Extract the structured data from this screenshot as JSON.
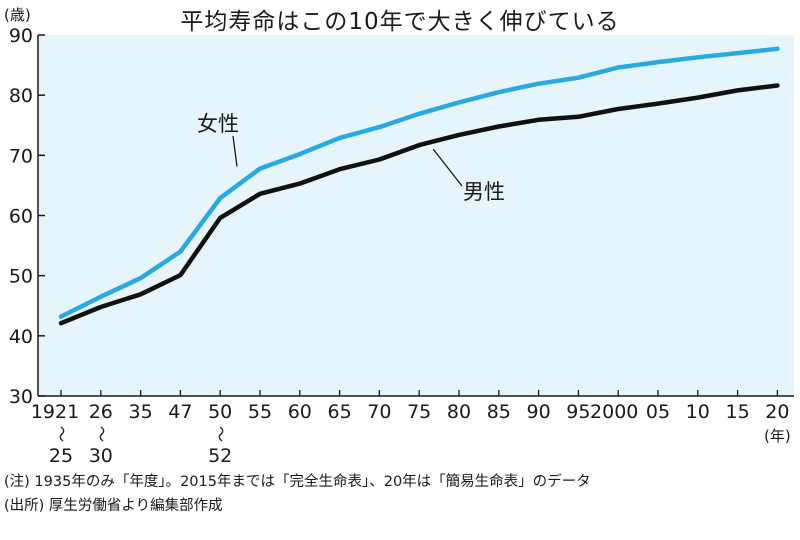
{
  "title": "平均寿命はこの10年で大きく伸びている",
  "y_unit": "(歳)",
  "x_unit": "(年)",
  "notes": [
    "(注) 1935年のみ「年度」。2015年までは「完全生命表」、20年は「簡易生命表」のデータ",
    "(出所) 厚生労働省より編集部作成"
  ],
  "chart_data": {
    "type": "line",
    "categories": [
      "1921〜25",
      "26〜30",
      "35",
      "47",
      "50〜52",
      "55",
      "60",
      "65",
      "70",
      "75",
      "80",
      "85",
      "90",
      "95",
      "2000",
      "05",
      "10",
      "15",
      "20"
    ],
    "tick_labels": [
      {
        "top": "1921",
        "bottom": "25",
        "range": true
      },
      {
        "top": "26",
        "bottom": "30",
        "range": true
      },
      {
        "top": "35"
      },
      {
        "top": "47"
      },
      {
        "top": "50",
        "bottom": "52",
        "range": true
      },
      {
        "top": "55"
      },
      {
        "top": "60"
      },
      {
        "top": "65"
      },
      {
        "top": "70"
      },
      {
        "top": "75"
      },
      {
        "top": "80"
      },
      {
        "top": "85"
      },
      {
        "top": "90"
      },
      {
        "top": "95"
      },
      {
        "top": "2000"
      },
      {
        "top": "05"
      },
      {
        "top": "10"
      },
      {
        "top": "15"
      },
      {
        "top": "20"
      }
    ],
    "range_mark": "〜",
    "ylim": [
      30,
      90
    ],
    "yticks": [
      30,
      40,
      50,
      60,
      70,
      80,
      90
    ],
    "grid": false,
    "series": [
      {
        "name": "女性",
        "color": "#29a9e1",
        "values": [
          43.2,
          46.5,
          49.6,
          54.0,
          62.9,
          67.8,
          70.2,
          72.9,
          74.7,
          76.9,
          78.8,
          80.5,
          81.9,
          82.9,
          84.6,
          85.5,
          86.3,
          87.0,
          87.7
        ]
      },
      {
        "name": "男性",
        "color": "#111111",
        "values": [
          42.1,
          44.8,
          46.9,
          50.1,
          59.6,
          63.6,
          65.3,
          67.7,
          69.3,
          71.7,
          73.4,
          74.8,
          75.9,
          76.4,
          77.7,
          78.6,
          79.6,
          80.8,
          81.6
        ]
      }
    ],
    "colors": {
      "plot_background": "#e6f4fb",
      "axis": "#1a1a1a"
    }
  }
}
